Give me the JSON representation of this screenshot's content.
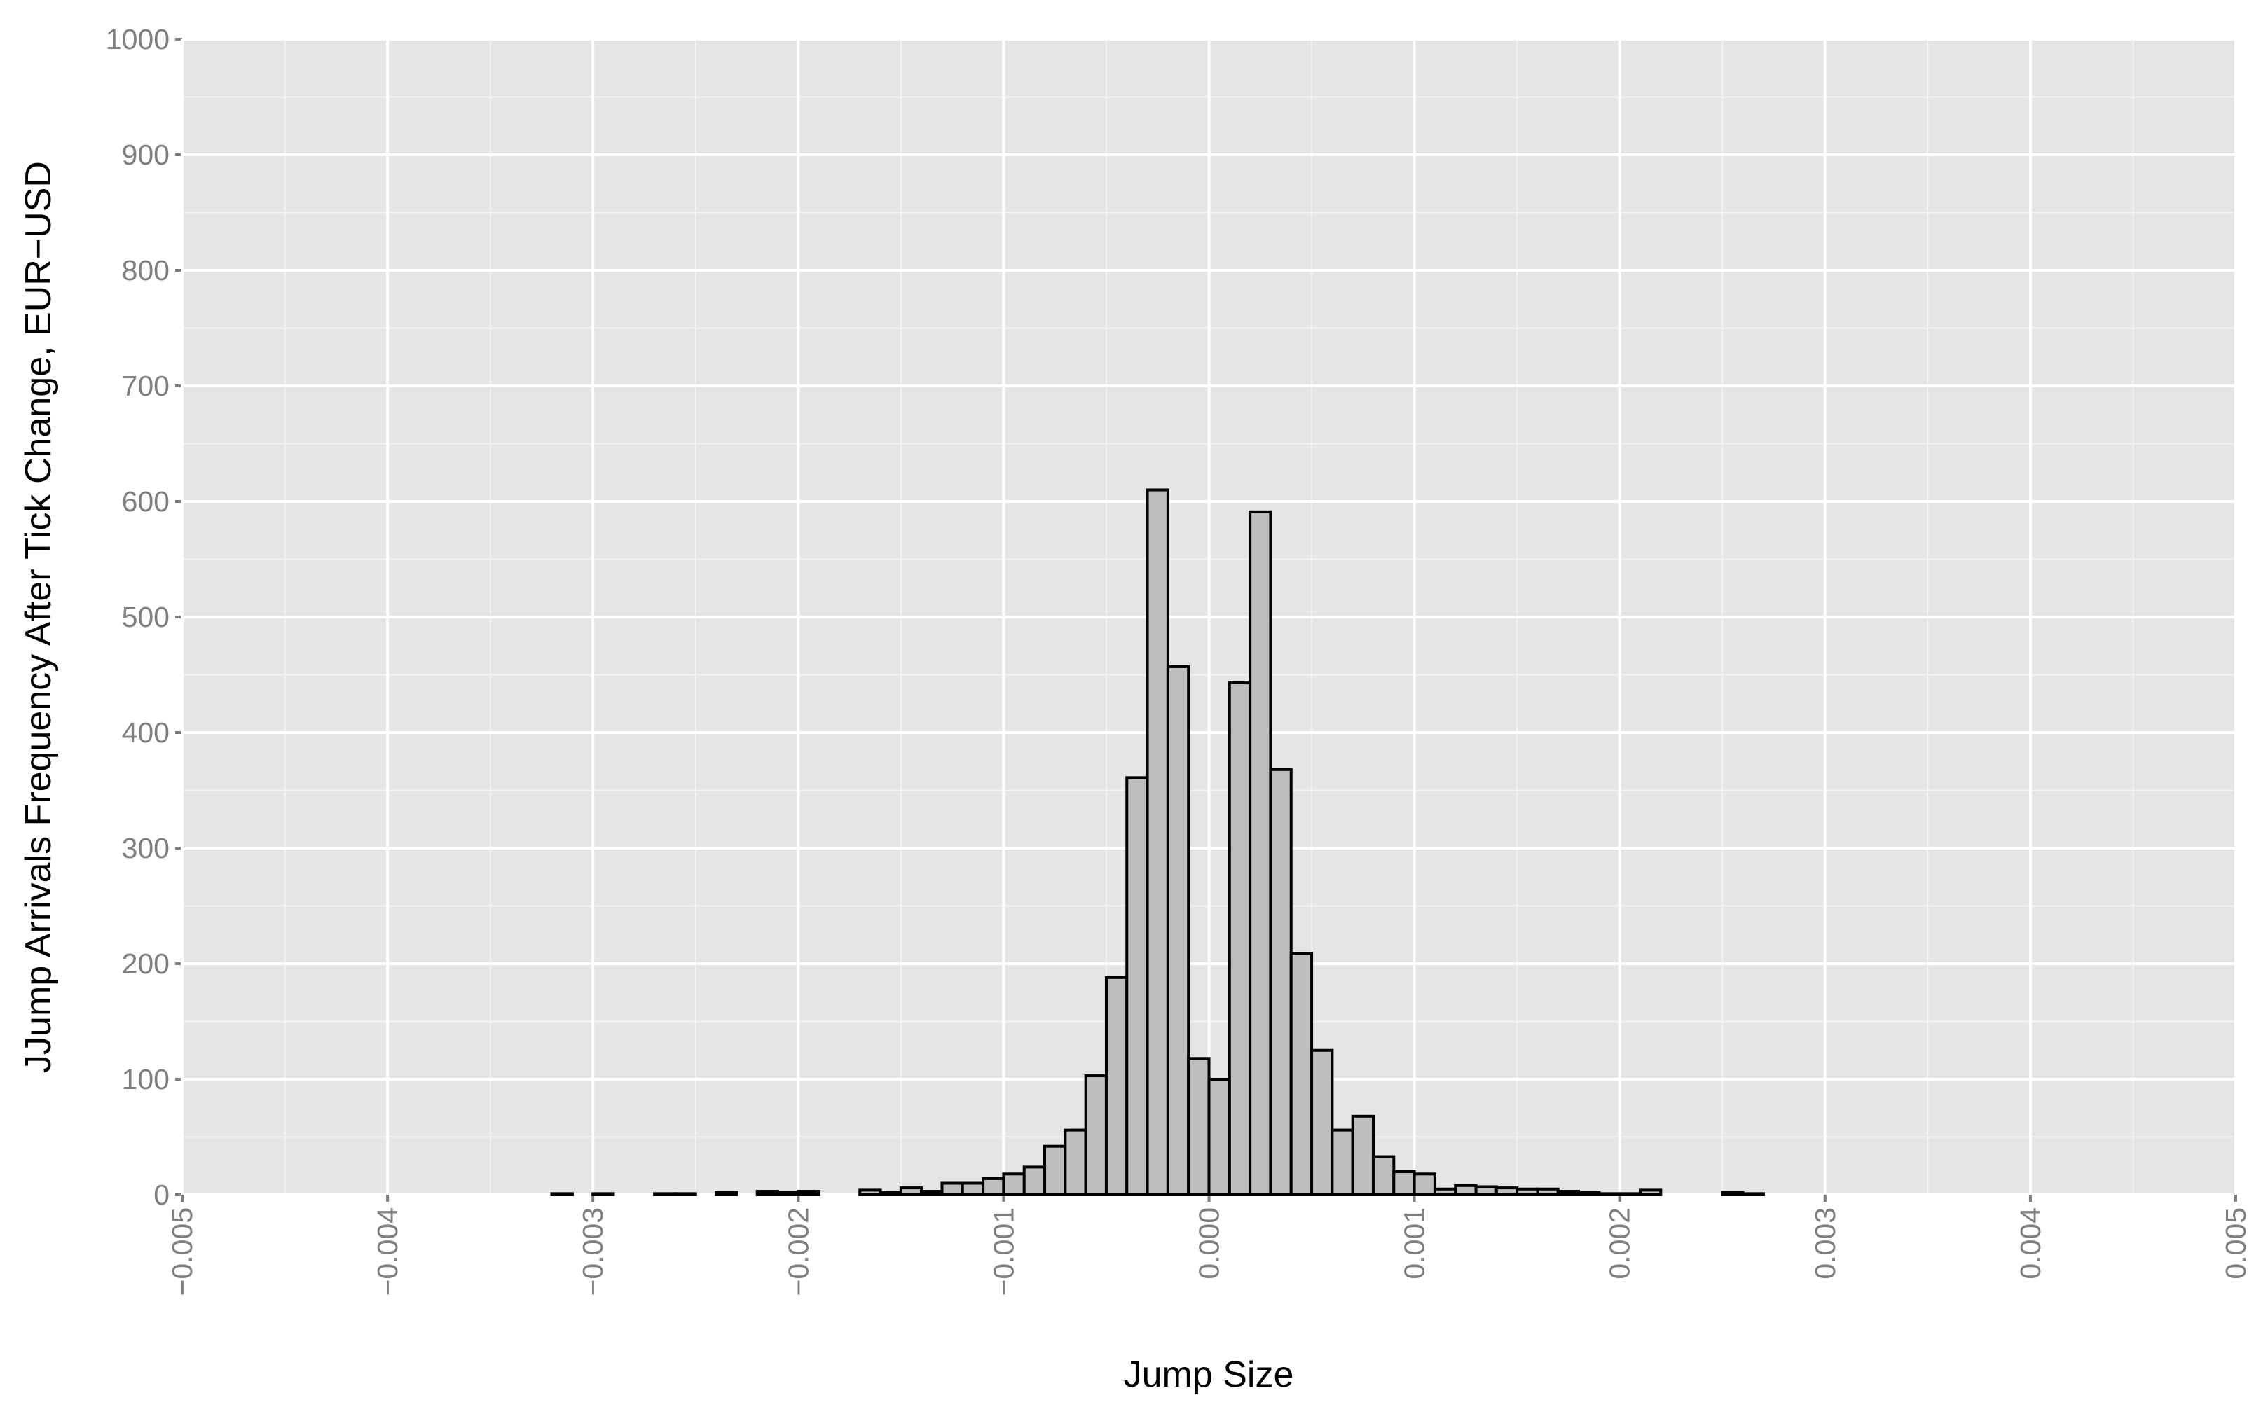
{
  "chart_data": {
    "type": "histogram",
    "x_label": "Jump Size",
    "y_label": "JJump Arrivals Frequency After Tick Change, EUR−USD",
    "bins": [
      -0.0033,
      -0.0032,
      -0.0031,
      -0.003,
      -0.0029,
      -0.0028,
      -0.0027,
      -0.0026,
      -0.0025,
      -0.0024,
      -0.0023,
      -0.0022,
      -0.0021,
      -0.002,
      -0.0019,
      -0.0018,
      -0.0017,
      -0.0016,
      -0.0015,
      -0.0014,
      -0.0013,
      -0.0012,
      -0.0011,
      -0.001,
      -0.0009,
      -0.0008,
      -0.0007,
      -0.0006,
      -0.0005,
      -0.0004,
      -0.0003,
      -0.0002,
      -0.0001,
      0,
      0.0001,
      0.0002,
      0.0003,
      0.0004,
      0.0005,
      0.0006,
      0.0007,
      0.0008,
      0.0009,
      0.001,
      0.0011,
      0.0012,
      0.0013,
      0.0014,
      0.0015,
      0.0016,
      0.0017,
      0.0018,
      0.0019,
      0.002,
      0.0021,
      0.0022,
      0.0023,
      0.0024,
      0.0025,
      0.0026,
      0.0027,
      0.0028
    ],
    "values": [
      0,
      1,
      0,
      1,
      0,
      0,
      1,
      1,
      0,
      2,
      0,
      3,
      2,
      3,
      0,
      0,
      4,
      2,
      6,
      3,
      10,
      10,
      14,
      18,
      24,
      42,
      56,
      103,
      188,
      361,
      610,
      457,
      118,
      100,
      443,
      591,
      368,
      209,
      125,
      56,
      68,
      33,
      20,
      18,
      5,
      8,
      7,
      6,
      5,
      5,
      3,
      2,
      1,
      1,
      4,
      0,
      0,
      0,
      2,
      1,
      0
    ],
    "color": "#bebebe",
    "edge_color": "#000000",
    "xlim": [
      -0.005,
      0.005
    ],
    "ylim": [
      0,
      1000
    ],
    "xticks": [
      {
        "value": -0.005,
        "label": "−0.005"
      },
      {
        "value": -0.004,
        "label": "−0.004"
      },
      {
        "value": -0.003,
        "label": "−0.003"
      },
      {
        "value": -0.002,
        "label": "−0.002"
      },
      {
        "value": -0.001,
        "label": "−0.001"
      },
      {
        "value": 0,
        "label": "0.000"
      },
      {
        "value": 0.001,
        "label": "0.001"
      },
      {
        "value": 0.002,
        "label": "0.002"
      },
      {
        "value": 0.003,
        "label": "0.003"
      },
      {
        "value": 0.004,
        "label": "0.004"
      },
      {
        "value": 0.005,
        "label": "0.005"
      }
    ],
    "yticks": [
      0,
      100,
      200,
      300,
      400,
      500,
      600,
      700,
      800,
      900,
      1000
    ],
    "grid": true
  }
}
